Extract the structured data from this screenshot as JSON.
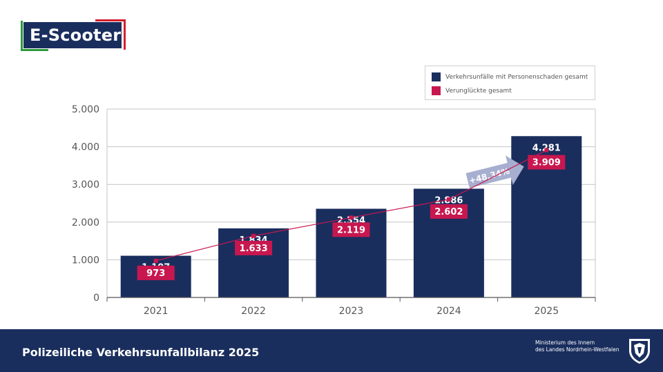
{
  "header": {
    "badge_text": "E-Scooter"
  },
  "legend": {
    "items": [
      {
        "label": "Verkehrsunfälle mit Personenschaden gesamt",
        "color": "#1a2e5e"
      },
      {
        "label": "Verunglückte gesamt",
        "color": "#c8174f"
      }
    ]
  },
  "growth_annotation": "+48,34%",
  "footer": {
    "title": "Polizeiliche Verkehrsunfallbilanz 2025",
    "ministry_line1": "Ministerium des Innern",
    "ministry_line2": "des Landes Nordrhein-Westfalen"
  },
  "colors": {
    "navy": "#1a2e5e",
    "crimson": "#c8174f",
    "arrow": "#a7afd0"
  },
  "chart_data": {
    "type": "bar",
    "title": "E-Scooter",
    "categories": [
      "2021",
      "2022",
      "2023",
      "2024",
      "2025"
    ],
    "series": [
      {
        "name": "Verkehrsunfälle mit Personenschaden gesamt",
        "kind": "bar",
        "values": [
          1107,
          1834,
          2354,
          2886,
          4281
        ],
        "labels": [
          "1.107",
          "1.834",
          "2.354",
          "2.886",
          "4.281"
        ]
      },
      {
        "name": "Verunglückte gesamt",
        "kind": "line",
        "values": [
          973,
          1633,
          2119,
          2602,
          3909
        ],
        "labels": [
          "973",
          "1.633",
          "2.119",
          "2.602",
          "3.909"
        ]
      }
    ],
    "ylim": [
      0,
      5000
    ],
    "yticks": [
      0,
      1000,
      2000,
      3000,
      4000,
      5000
    ],
    "ytick_labels": [
      "0",
      "1.000",
      "2.000",
      "3.000",
      "4.000",
      "5.000"
    ],
    "grid": true,
    "legend_position": "top-right",
    "xlabel": "",
    "ylabel": ""
  }
}
